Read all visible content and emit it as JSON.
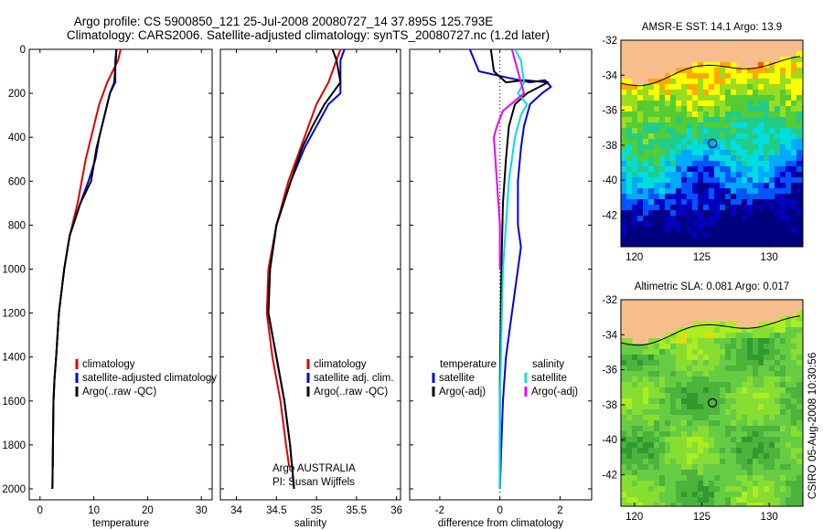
{
  "header": {
    "line1": "Argo profile: CS 5900850_121 25-Jul-2008 20080727_14 37.895S 125.793E",
    "line2": "Climatology: CARS2006. Satellite-adjusted climatology: synTS_20080727.nc (1.2d later)"
  },
  "side_label": "CSIRO 05-Aug-2008 10:30:56",
  "credit": {
    "line1": "Argo AUSTRALIA",
    "line2": "PI: Susan Wijffels"
  },
  "colors": {
    "climatology": "#dd0000",
    "satellite": "#0000dd",
    "argo": "#000000",
    "salinity_satellite": "#00dddd",
    "salinity_argo": "#ee00ee",
    "land": "#f8bd8d",
    "map_frame": "#000000"
  },
  "chart_data": [
    {
      "id": "temperature",
      "type": "line",
      "xlabel": "temperature",
      "xlim": [
        -2,
        32
      ],
      "ylim": [
        0,
        2050
      ],
      "y_inverted": true,
      "xticks": [
        0,
        10,
        20,
        30
      ],
      "yticks": [
        0,
        200,
        400,
        600,
        800,
        1000,
        1200,
        1400,
        1600,
        1800,
        2000
      ],
      "legend": [
        "climatology",
        "satellite-adjusted climatology",
        "Argo(..raw -QC)"
      ],
      "series": [
        {
          "name": "climatology",
          "color": "#dd0000",
          "x": [
            15.0,
            14.5,
            13.5,
            12.5,
            11.0,
            10.0,
            8.5,
            7.0,
            5.5,
            4.5,
            3.5,
            3.0,
            2.7,
            2.5,
            2.4,
            2.4
          ],
          "y": [
            0,
            50,
            100,
            150,
            250,
            350,
            500,
            700,
            850,
            1000,
            1200,
            1400,
            1500,
            1600,
            1800,
            1900
          ]
        },
        {
          "name": "satellite-adjusted climatology",
          "color": "#0000dd",
          "x": [
            14.2,
            14.0,
            14.0,
            13.0,
            11.0,
            10.3,
            9.0,
            7.5,
            5.5,
            4.5,
            3.5,
            3.0,
            2.7,
            2.5,
            2.4,
            2.3
          ],
          "y": [
            0,
            50,
            150,
            200,
            400,
            500,
            600,
            700,
            850,
            1000,
            1200,
            1400,
            1500,
            1600,
            1800,
            2000
          ]
        },
        {
          "name": "Argo(..raw -QC)",
          "color": "#000000",
          "x": [
            14.2,
            14.1,
            13.8,
            13.0,
            12.0,
            10.5,
            9.5,
            7.5,
            5.5,
            4.5,
            3.5,
            3.0,
            2.7,
            2.5,
            2.4,
            2.3
          ],
          "y": [
            0,
            50,
            150,
            200,
            300,
            450,
            600,
            700,
            850,
            1000,
            1200,
            1400,
            1500,
            1600,
            1800,
            2000
          ]
        }
      ]
    },
    {
      "id": "salinity",
      "type": "line",
      "xlabel": "salinity",
      "xlim": [
        33.8,
        36.05
      ],
      "ylim": [
        0,
        2050
      ],
      "y_inverted": true,
      "xticks": [
        34,
        34.5,
        35,
        35.5,
        36
      ],
      "legend": [
        "climatology",
        "satellite adj. clim.",
        "Argo(..raw -QC)"
      ],
      "series": [
        {
          "name": "climatology",
          "color": "#dd0000",
          "x": [
            35.3,
            35.2,
            35.15,
            35.0,
            34.9,
            34.8,
            34.65,
            34.5,
            34.4,
            34.38,
            34.45,
            34.55,
            34.62,
            34.66
          ],
          "y": [
            0,
            100,
            150,
            250,
            350,
            450,
            600,
            800,
            1000,
            1200,
            1400,
            1600,
            1800,
            1900
          ]
        },
        {
          "name": "satellite adj. clim.",
          "color": "#0000dd",
          "x": [
            35.35,
            35.3,
            35.3,
            35.15,
            35.0,
            34.85,
            34.68,
            34.5,
            34.42,
            34.4,
            34.5,
            34.6,
            34.67,
            34.72
          ],
          "y": [
            0,
            50,
            200,
            250,
            350,
            450,
            600,
            800,
            1000,
            1200,
            1400,
            1600,
            1800,
            2000
          ]
        },
        {
          "name": "Argo(..raw -QC)",
          "color": "#000000",
          "x": [
            35.2,
            35.25,
            35.3,
            35.1,
            34.95,
            34.82,
            34.68,
            34.5,
            34.42,
            34.4,
            34.5,
            34.6,
            34.67,
            34.72
          ],
          "y": [
            0,
            50,
            150,
            250,
            350,
            450,
            600,
            800,
            1000,
            1200,
            1400,
            1600,
            1800,
            2000
          ]
        }
      ]
    },
    {
      "id": "difference",
      "type": "line",
      "xlabel": "difference from climatology",
      "xlim": [
        -3.0,
        3.05
      ],
      "ylim": [
        0,
        2050
      ],
      "y_inverted": true,
      "xticks": [
        -2,
        0,
        2
      ],
      "legend_left": [
        "temperature",
        "satellite",
        "Argo(-adj)"
      ],
      "legend_right": [
        "salinity",
        "satellite",
        "Argo(-adj)"
      ],
      "series": [
        {
          "name": "temperature satellite",
          "color": "#0000dd",
          "x": [
            -1.0,
            -0.7,
            0.3,
            1.0,
            1.5,
            1.7,
            1.4,
            1.0,
            0.8,
            0.7,
            0.6,
            0.6,
            0.7,
            0.6,
            0.4,
            0.2,
            0.1,
            0.05,
            0.0
          ],
          "y": [
            0,
            100,
            130,
            150,
            140,
            170,
            200,
            250,
            350,
            450,
            600,
            800,
            900,
            1000,
            1200,
            1400,
            1600,
            1800,
            2000
          ]
        },
        {
          "name": "temperature Argo(-adj)",
          "color": "#000000",
          "x": [
            -0.3,
            -0.2,
            0.2,
            0.8,
            1.6,
            0.9,
            0.5,
            0.3,
            0.2,
            0.1,
            0.05,
            0.0,
            0.0
          ],
          "y": [
            0,
            100,
            150,
            140,
            150,
            200,
            250,
            350,
            500,
            700,
            1000,
            1500,
            2000
          ]
        },
        {
          "name": "salinity satellite",
          "color": "#00dddd",
          "x": [
            0.5,
            0.7,
            0.8,
            0.6,
            0.9,
            0.7,
            0.5,
            0.3,
            0.2,
            0.1,
            0.05,
            0.0,
            0.0
          ],
          "y": [
            0,
            50,
            150,
            200,
            250,
            300,
            400,
            600,
            800,
            1000,
            1300,
            1600,
            2000
          ]
        },
        {
          "name": "salinity Argo(-adj)",
          "color": "#ee00ee",
          "x": [
            0.4,
            0.5,
            0.6,
            0.8,
            0.1,
            -0.1,
            -0.2,
            -0.1,
            0.0,
            0.0
          ],
          "y": [
            0,
            50,
            100,
            200,
            280,
            350,
            400,
            600,
            800,
            1000
          ]
        }
      ]
    },
    {
      "id": "sst_map",
      "type": "heatmap",
      "title": "AMSR-E SST: 14.1 Argo: 13.9",
      "xlim": [
        119,
        132.5
      ],
      "ylim": [
        -43.8,
        -32
      ],
      "xticks": [
        120,
        125,
        130
      ],
      "yticks": [
        -32,
        -34,
        -36,
        -38,
        -40,
        -42
      ],
      "marker": {
        "lon": 125.793,
        "lat": -37.895
      },
      "palette": [
        "#00007f",
        "#0000bf",
        "#0055ff",
        "#00aaff",
        "#00dddd",
        "#22cc88",
        "#55cc33",
        "#99dd22",
        "#ffff00",
        "#ffaa00",
        "#ff5500"
      ]
    },
    {
      "id": "sla_map",
      "type": "heatmap",
      "title": "Altimetric SLA: 0.081 Argo: 0.017",
      "xlim": [
        119,
        132.5
      ],
      "ylim": [
        -43.8,
        -32
      ],
      "xticks": [
        120,
        125,
        130
      ],
      "yticks": [
        -32,
        -34,
        -36,
        -38,
        -40,
        -42
      ],
      "marker": {
        "lon": 125.793,
        "lat": -37.895
      },
      "palette": [
        "#2f9b2f",
        "#4cb33c",
        "#66cc44",
        "#88dd33",
        "#aaee22",
        "#dddd11",
        "#ffcc00"
      ]
    }
  ]
}
